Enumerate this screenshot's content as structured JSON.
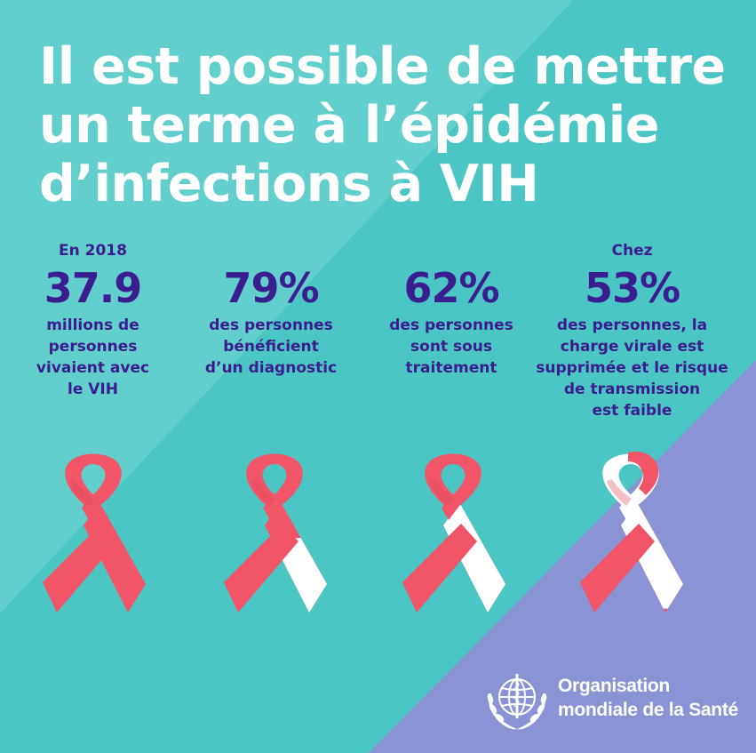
{
  "title_lines": [
    "Il est possible de mettre",
    "un terme à l’épidémie",
    "d’infections à VIH"
  ],
  "stats": [
    {
      "prefix": "En 2018",
      "value": "37.9",
      "description": [
        "millions de",
        "personnes",
        "vivaient avec",
        "le VIH"
      ],
      "ribbon_white_fraction": 0
    },
    {
      "prefix": "",
      "value": "79%",
      "description": [
        "des personnes",
        "bénéficient",
        "d’un diagnostic"
      ],
      "ribbon_white_fraction": 0.21
    },
    {
      "prefix": "",
      "value": "62%",
      "description": [
        "des personnes",
        "sont sous",
        "traitement"
      ],
      "ribbon_white_fraction": 0.38
    },
    {
      "prefix": "Chez",
      "value": "53%",
      "description": [
        "des personnes, la",
        "charge virale est",
        "supprimée et le risque",
        "de transmission",
        "est faible"
      ],
      "ribbon_white_fraction": 0.47
    }
  ],
  "organization": {
    "name_lines": [
      "Organisation",
      "mondiale de la Santé"
    ]
  },
  "colors": {
    "background": "#4cc6c4",
    "background_light": "#63cfcc",
    "background_purple": "#8a93d6",
    "ribbon_red": "#f25567",
    "ribbon_white": "#ffffff",
    "stat_text": "#3a1d8f",
    "title_text": "#ffffff"
  }
}
